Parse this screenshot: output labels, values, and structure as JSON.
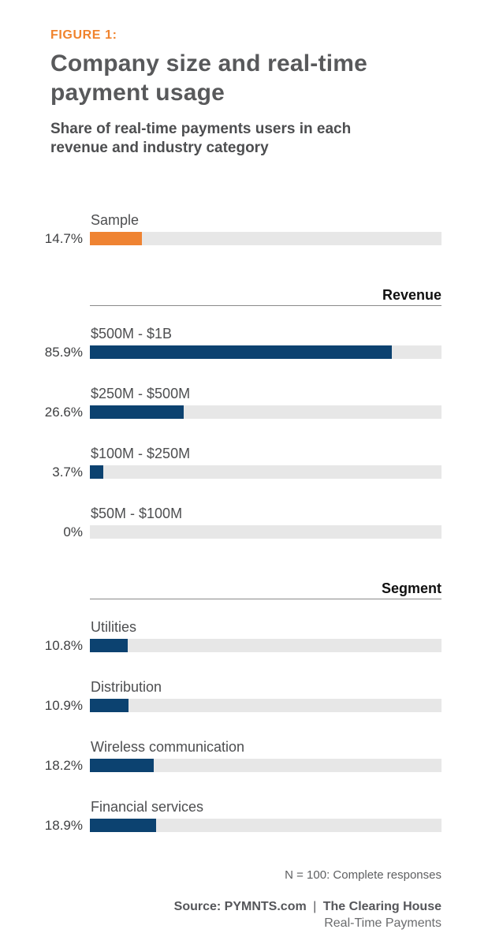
{
  "header": {
    "figure_label": "FIGURE 1:",
    "title": "Company size and real-time payment usage",
    "subtitle": "Share of real-time payments users in each revenue and industry category"
  },
  "colors": {
    "accent_orange": "#EF8332",
    "bar_navy": "#0C4270",
    "bar_track_gray": "#E7E7E7",
    "title_gray": "#58595B"
  },
  "chart_data": {
    "type": "bar",
    "orientation": "horizontal",
    "unit": "percent",
    "xlim": [
      0,
      100
    ],
    "grid": false,
    "legend": false,
    "groups": [
      {
        "heading": null,
        "bars": [
          {
            "label": "Sample",
            "value": 14.7,
            "display": "14.7%",
            "color": "orange"
          }
        ]
      },
      {
        "heading": "Revenue",
        "bars": [
          {
            "label": "$500M - $1B",
            "value": 85.9,
            "display": "85.9%",
            "color": "navy"
          },
          {
            "label": "$250M - $500M",
            "value": 26.6,
            "display": "26.6%",
            "color": "navy"
          },
          {
            "label": "$100M - $250M",
            "value": 3.7,
            "display": "3.7%",
            "color": "navy"
          },
          {
            "label": "$50M - $100M",
            "value": 0,
            "display": "0%",
            "color": "navy"
          }
        ]
      },
      {
        "heading": "Segment",
        "bars": [
          {
            "label": "Utilities",
            "value": 10.8,
            "display": "10.8%",
            "color": "navy"
          },
          {
            "label": "Distribution",
            "value": 10.9,
            "display": "10.9%",
            "color": "navy"
          },
          {
            "label": "Wireless communication",
            "value": 18.2,
            "display": "18.2%",
            "color": "navy"
          },
          {
            "label": "Financial services",
            "value": 18.9,
            "display": "18.9%",
            "color": "navy"
          }
        ]
      }
    ]
  },
  "footer": {
    "note": "N = 100: Complete responses",
    "source_prefix": "Source: PYMNTS.com",
    "source_divider": "|",
    "source_org": "The Clearing House",
    "source_sub": "Real-Time Payments"
  }
}
